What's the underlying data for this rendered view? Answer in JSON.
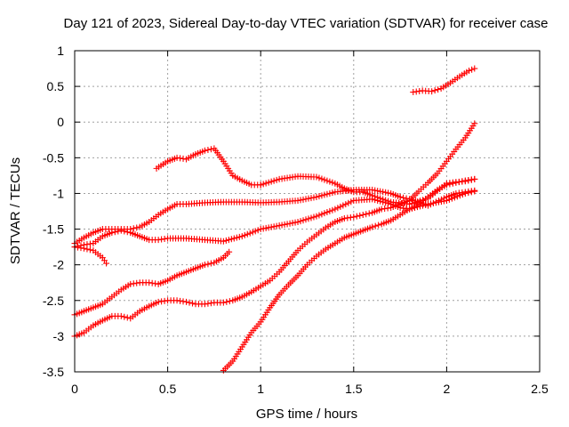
{
  "chart_data": {
    "type": "scatter",
    "title": "Day 121 of 2023, Sidereal Day-to-day VTEC variation (SDTVAR) for receiver case",
    "xlabel": "GPS time / hours",
    "ylabel": "SDTVAR / TECUs",
    "xlim": [
      0,
      2.5
    ],
    "ylim": [
      -3.5,
      1
    ],
    "xticks": [
      0,
      0.5,
      1,
      1.5,
      2,
      2.5
    ],
    "xtick_labels": [
      "0",
      "0.5",
      "1",
      "1.5",
      "2",
      "2.5"
    ],
    "yticks": [
      1,
      0.5,
      0,
      -0.5,
      -1,
      -1.5,
      -2,
      -2.5,
      -3,
      -3.5
    ],
    "ytick_labels": [
      "1",
      "0.5",
      "0",
      "-0.5",
      "-1",
      "-1.5",
      "-2",
      "-2.5",
      "-3",
      "-3.5"
    ],
    "grid": true,
    "marker": "+",
    "color": "#ff0000",
    "series": [
      {
        "x": [
          1.82,
          1.87,
          1.92,
          1.97,
          2.02,
          2.07,
          2.12,
          2.15
        ],
        "y": [
          0.42,
          0.44,
          0.43,
          0.47,
          0.55,
          0.64,
          0.72,
          0.75
        ]
      },
      {
        "x": [
          0.44,
          0.5,
          0.55,
          0.6,
          0.65,
          0.7,
          0.75,
          0.8,
          0.85,
          0.9,
          0.95,
          1.0
        ],
        "y": [
          -0.65,
          -0.55,
          -0.5,
          -0.52,
          -0.45,
          -0.4,
          -0.37,
          -0.55,
          -0.75,
          -0.82,
          -0.88,
          -0.88
        ]
      },
      {
        "x": [
          1.0,
          1.1,
          1.2,
          1.3,
          1.4,
          1.45,
          1.5,
          1.55,
          1.6,
          1.7,
          1.8,
          1.9,
          2.0,
          2.05,
          2.1,
          2.15
        ],
        "y": [
          -0.88,
          -0.8,
          -0.76,
          -0.77,
          -0.86,
          -0.93,
          -0.98,
          -0.98,
          -1.03,
          -1.12,
          -1.15,
          -1.07,
          -0.86,
          -0.84,
          -0.83,
          -0.8
        ]
      },
      {
        "x": [
          0,
          0.05,
          0.1,
          0.15,
          0.2,
          0.25,
          0.3,
          0.35,
          0.4,
          0.45,
          0.5,
          0.55,
          0.6,
          0.7,
          0.8,
          0.9,
          1.0,
          1.1,
          1.2,
          1.3,
          1.4,
          1.5,
          1.6,
          1.7,
          1.75
        ],
        "y": [
          -1.7,
          -1.62,
          -1.55,
          -1.5,
          -1.5,
          -1.5,
          -1.5,
          -1.47,
          -1.4,
          -1.3,
          -1.22,
          -1.15,
          -1.15,
          -1.13,
          -1.12,
          -1.12,
          -1.13,
          -1.12,
          -1.1,
          -1.05,
          -0.98,
          -0.95,
          -0.95,
          -1.0,
          -1.05
        ]
      },
      {
        "x": [
          1.75,
          1.8,
          1.85,
          1.9,
          2.0,
          2.05,
          2.1,
          2.15
        ],
        "y": [
          -1.05,
          -1.08,
          -1.12,
          -1.17,
          -1.05,
          -1.0,
          -0.98,
          -0.96
        ]
      },
      {
        "x": [
          0,
          0.05,
          0.1,
          0.15,
          0.17
        ],
        "y": [
          -1.75,
          -1.77,
          -1.8,
          -1.9,
          -1.98
        ]
      },
      {
        "x": [
          0.0,
          0.05,
          0.1,
          0.15,
          0.2,
          0.25,
          0.3,
          0.35,
          0.4,
          0.45,
          0.5,
          0.6,
          0.7,
          0.8,
          0.9,
          1.0,
          1.1,
          1.2,
          1.3,
          1.4,
          1.5,
          1.6,
          1.7,
          1.75,
          1.8,
          1.9,
          2.0,
          2.1,
          2.15
        ],
        "y": [
          -1.75,
          -1.72,
          -1.7,
          -1.6,
          -1.55,
          -1.52,
          -1.55,
          -1.6,
          -1.65,
          -1.65,
          -1.63,
          -1.63,
          -1.65,
          -1.67,
          -1.6,
          -1.5,
          -1.45,
          -1.4,
          -1.32,
          -1.22,
          -1.1,
          -1.08,
          -1.15,
          -1.2,
          -1.22,
          -1.15,
          -1.1,
          -1.0,
          -0.97
        ]
      },
      {
        "x": [
          0,
          0.05,
          0.1,
          0.15,
          0.2,
          0.25,
          0.3,
          0.35,
          0.4,
          0.45,
          0.5,
          0.55,
          0.6,
          0.65,
          0.7,
          0.75,
          0.8,
          0.83
        ],
        "y": [
          -2.7,
          -2.65,
          -2.6,
          -2.55,
          -2.45,
          -2.35,
          -2.27,
          -2.25,
          -2.25,
          -2.27,
          -2.22,
          -2.15,
          -2.1,
          -2.05,
          -2.0,
          -1.97,
          -1.9,
          -1.82
        ]
      },
      {
        "x": [
          0,
          0.05,
          0.1,
          0.15,
          0.2,
          0.25,
          0.3,
          0.35,
          0.4,
          0.45,
          0.5,
          0.55,
          0.6,
          0.65,
          0.7,
          0.75,
          0.8,
          0.85,
          0.9,
          0.95,
          1.0,
          1.05,
          1.1,
          1.15,
          1.2,
          1.25,
          1.3,
          1.35,
          1.4,
          1.45,
          1.5,
          1.55,
          1.6,
          1.65,
          1.7,
          1.75,
          1.8,
          1.85,
          1.9,
          1.95,
          2.0,
          2.05,
          2.1,
          2.15
        ],
        "y": [
          -3.0,
          -2.95,
          -2.85,
          -2.78,
          -2.72,
          -2.72,
          -2.75,
          -2.65,
          -2.58,
          -2.52,
          -2.5,
          -2.5,
          -2.52,
          -2.55,
          -2.55,
          -2.53,
          -2.53,
          -2.5,
          -2.45,
          -2.38,
          -2.3,
          -2.22,
          -2.1,
          -1.95,
          -1.8,
          -1.68,
          -1.58,
          -1.48,
          -1.4,
          -1.35,
          -1.33,
          -1.3,
          -1.27,
          -1.22,
          -1.2,
          -1.15,
          -1.1,
          -0.97,
          -0.85,
          -0.72,
          -0.55,
          -0.38,
          -0.22,
          -0.02
        ]
      },
      {
        "x": [
          0.8,
          0.85,
          0.9,
          0.95,
          1.0,
          1.05,
          1.1,
          1.15,
          1.2,
          1.25,
          1.3,
          1.35,
          1.4,
          1.45,
          1.5,
          1.55,
          1.6,
          1.65,
          1.7,
          1.75,
          1.8,
          1.85,
          1.9,
          1.95,
          2.0,
          2.05,
          2.1,
          2.15
        ],
        "y": [
          -3.48,
          -3.35,
          -3.15,
          -2.95,
          -2.8,
          -2.6,
          -2.42,
          -2.28,
          -2.15,
          -2.0,
          -1.88,
          -1.78,
          -1.7,
          -1.62,
          -1.57,
          -1.52,
          -1.47,
          -1.43,
          -1.38,
          -1.3,
          -1.22,
          -1.15,
          -1.05,
          -0.95,
          -0.88,
          -0.85,
          -0.82,
          -0.8
        ]
      }
    ]
  }
}
